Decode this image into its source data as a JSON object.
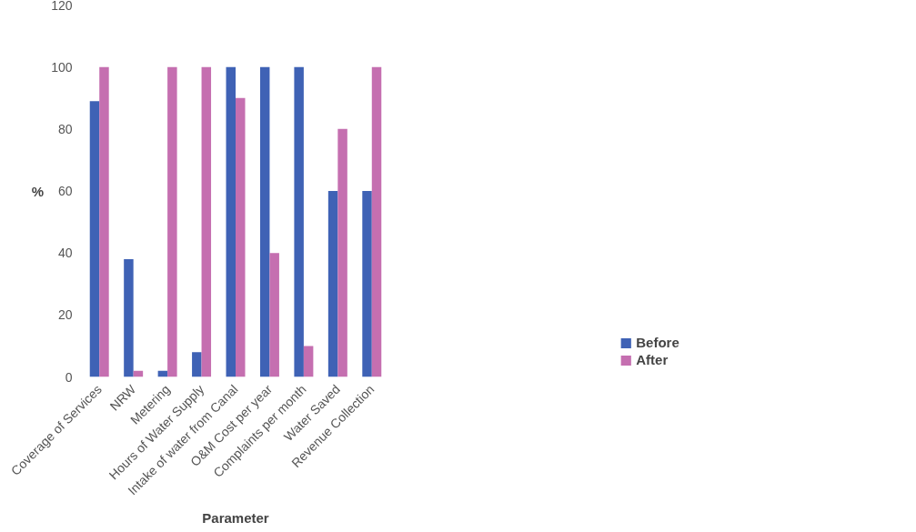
{
  "chart_data": {
    "type": "bar",
    "xlabel": "Parameter",
    "ylabel": "%",
    "categories": [
      "Coverage of Services",
      "NRW",
      "Metering",
      "Hours of Water Supply",
      "Intake of water from Canal",
      "O&M Cost per year",
      "Complaints per month",
      "Water Saved",
      "Revenue Collection"
    ],
    "series": [
      {
        "name": "Before",
        "color": "#3f62b5",
        "values": [
          89,
          38,
          2,
          8,
          100,
          100,
          100,
          60,
          60
        ]
      },
      {
        "name": "After",
        "color": "#c56fb0",
        "values": [
          100,
          2,
          100,
          100,
          90,
          40,
          10,
          80,
          100
        ]
      }
    ],
    "ylim": [
      0,
      120
    ],
    "yticks": [
      0,
      20,
      40,
      60,
      80,
      100,
      120
    ],
    "grid": false,
    "legend": "bottom right"
  }
}
